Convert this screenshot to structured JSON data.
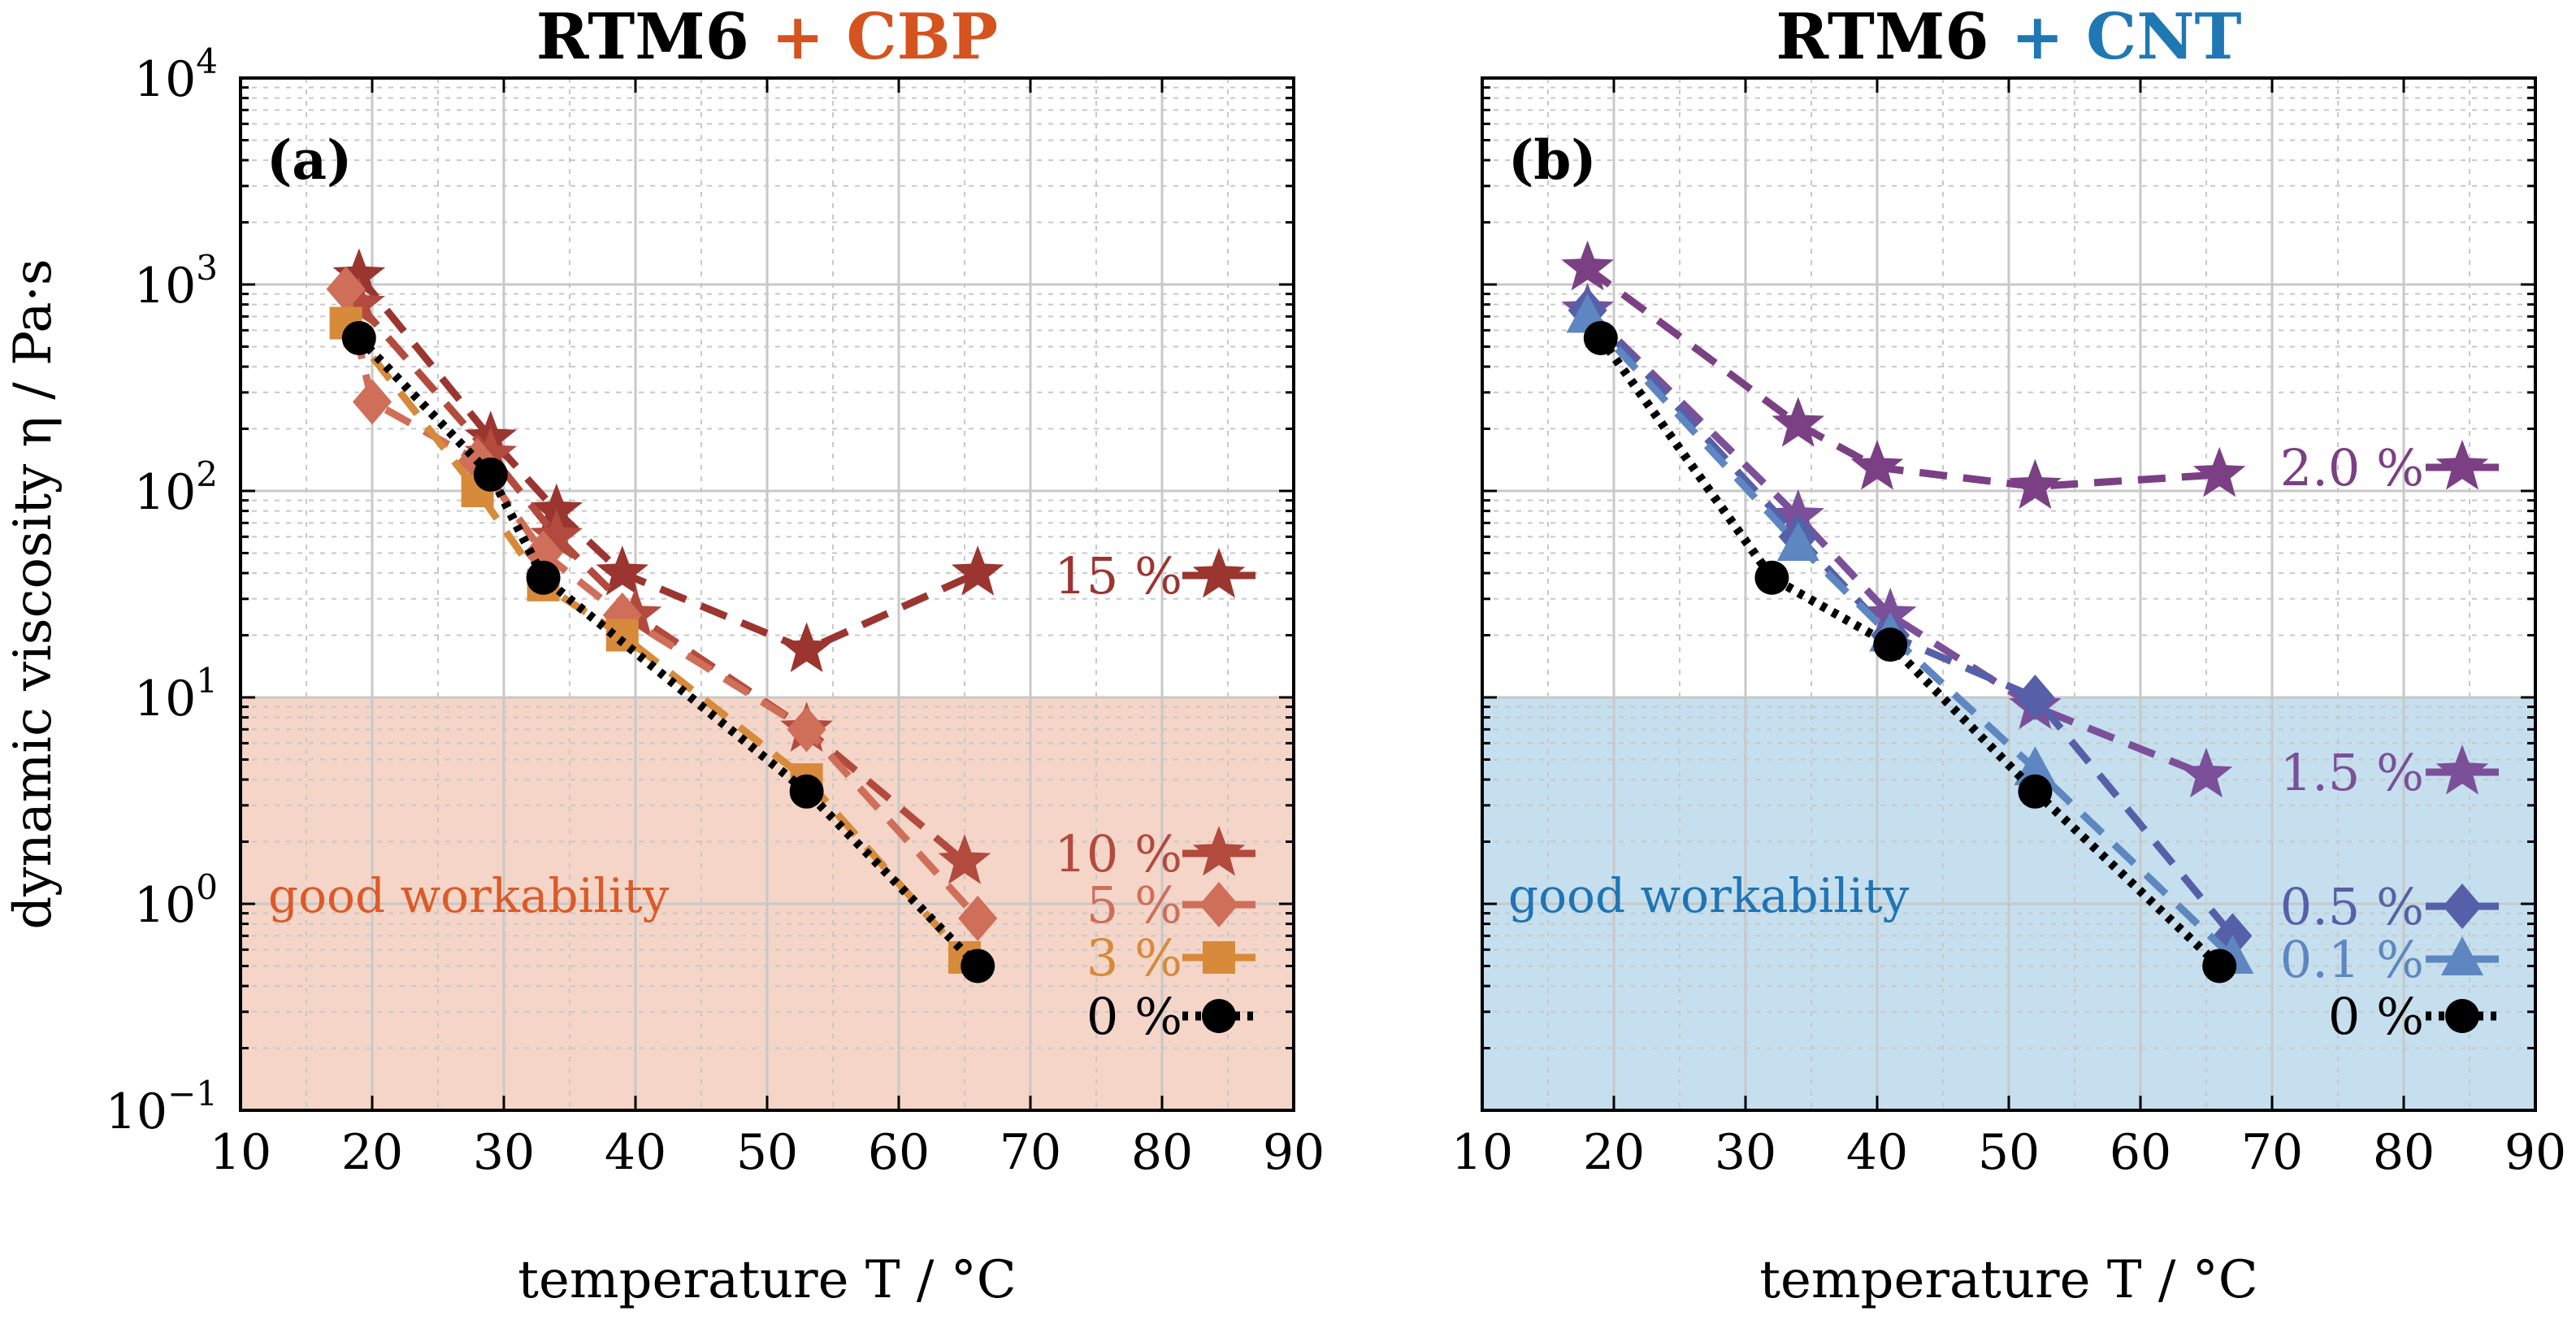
{
  "colors": {
    "black": "#000000",
    "cbp_accent": "#d4531f",
    "cnt_accent": "#1f78b4",
    "cbp_15": "#9b3530",
    "cbp_10": "#b24a3e",
    "cbp_5": "#cf6e59",
    "cbp_3": "#d68a3a",
    "cnt_20": "#7b3f84",
    "cnt_15": "#7b5099",
    "cnt_05": "#5660a8",
    "cnt_01": "#5e86c0",
    "cbp_region": "#f5d5c7",
    "cnt_region": "#c5dfee",
    "cbp_region_text": "#dc5a28",
    "cnt_region_text": "#1f74b5",
    "grid_major": "#c8c8c8",
    "grid_minor": "#c8c8c8"
  },
  "y_axis": {
    "label": "dynamic viscosity η / Pa·s",
    "tick_labels": [
      {
        "value": 0.1,
        "base": "10",
        "exp": "−1"
      },
      {
        "value": 1,
        "base": "10",
        "exp": "0"
      },
      {
        "value": 10,
        "base": "10",
        "exp": "1"
      },
      {
        "value": 100,
        "base": "10",
        "exp": "2"
      },
      {
        "value": 1000,
        "base": "10",
        "exp": "3"
      },
      {
        "value": 10000,
        "base": "10",
        "exp": "4"
      }
    ]
  },
  "panels": [
    {
      "id": "a",
      "title_main": "RTM6",
      "title_plus": " + ",
      "title_filler": "CBP",
      "panel_label": "(a)",
      "region_label": "good workability",
      "xlabel": "temperature T / °C"
    },
    {
      "id": "b",
      "title_main": "RTM6",
      "title_plus": " + ",
      "title_filler": "CNT",
      "panel_label": "(b)",
      "region_label": "good workability",
      "xlabel": "temperature T / °C"
    }
  ],
  "chart_data": [
    {
      "type": "line",
      "title": "RTM6 + CBP",
      "xlabel": "temperature T / °C",
      "ylabel": "dynamic viscosity η / Pa·s",
      "xlim": [
        10,
        90
      ],
      "ylim": [
        0.1,
        10000
      ],
      "yscale": "log",
      "xticks": [
        10,
        20,
        30,
        40,
        50,
        60,
        70,
        80,
        90
      ],
      "highlight_region": {
        "y_from": 0.1,
        "y_to": 10,
        "label": "good workability"
      },
      "legend_position": "right",
      "series": [
        {
          "name": "15 %",
          "color_key": "cbp_15",
          "marker": "star",
          "dash": "long",
          "x": [
            19,
            29,
            34,
            39,
            53,
            66
          ],
          "y": [
            1100,
            180,
            80,
            40,
            17,
            40
          ]
        },
        {
          "name": "10 %",
          "color_key": "cbp_10",
          "marker": "star",
          "dash": "long",
          "x": [
            19,
            29,
            34,
            40,
            53,
            65
          ],
          "y": [
            800,
            150,
            60,
            25,
            7,
            1.6
          ]
        },
        {
          "name": "5 %",
          "color_key": "cbp_5",
          "marker": "diamond",
          "dash": "long",
          "x": [
            18,
            20,
            28,
            33,
            39,
            53,
            66
          ],
          "y": [
            950,
            270,
            140,
            50,
            25,
            7,
            0.85
          ]
        },
        {
          "name": "3 %",
          "color_key": "cbp_3",
          "marker": "square",
          "dash": "long",
          "x": [
            18,
            28,
            33,
            39,
            53,
            65
          ],
          "y": [
            650,
            100,
            35,
            20,
            4,
            0.55
          ]
        },
        {
          "name": "0 %",
          "color_key": "black",
          "marker": "circle",
          "dash": "dotted",
          "x": [
            19,
            29,
            33,
            53,
            66
          ],
          "y": [
            550,
            120,
            38,
            3.5,
            0.5
          ]
        }
      ]
    },
    {
      "type": "line",
      "title": "RTM6 + CNT",
      "xlabel": "temperature T / °C",
      "ylabel": "dynamic viscosity η / Pa·s",
      "xlim": [
        10,
        90
      ],
      "ylim": [
        0.1,
        10000
      ],
      "yscale": "log",
      "xticks": [
        10,
        20,
        30,
        40,
        50,
        60,
        70,
        80,
        90
      ],
      "highlight_region": {
        "y_from": 0.1,
        "y_to": 10,
        "label": "good workability"
      },
      "legend_position": "right",
      "series": [
        {
          "name": "2.0 %",
          "color_key": "cnt_20",
          "marker": "star",
          "dash": "long",
          "x": [
            18,
            34,
            40,
            52,
            66
          ],
          "y": [
            1200,
            210,
            130,
            105,
            120
          ]
        },
        {
          "name": "1.5 %",
          "color_key": "cnt_15",
          "marker": "star",
          "dash": "long",
          "x": [
            18,
            34,
            41,
            52,
            65
          ],
          "y": [
            750,
            75,
            25,
            9,
            4.2
          ]
        },
        {
          "name": "0.5 %",
          "color_key": "cnt_05",
          "marker": "diamond",
          "dash": "long",
          "x": [
            18,
            34,
            41,
            52,
            67
          ],
          "y": [
            750,
            60,
            20,
            10,
            0.7
          ]
        },
        {
          "name": "0.1 %",
          "color_key": "cnt_01",
          "marker": "triangle",
          "dash": "long",
          "x": [
            18,
            34,
            41,
            52,
            67
          ],
          "y": [
            700,
            55,
            20,
            4.5,
            0.55
          ]
        },
        {
          "name": "0 %",
          "color_key": "black",
          "marker": "circle",
          "dash": "dotted",
          "x": [
            19,
            32,
            41,
            52,
            66
          ],
          "y": [
            550,
            38,
            18,
            3.5,
            0.5
          ]
        }
      ]
    }
  ]
}
